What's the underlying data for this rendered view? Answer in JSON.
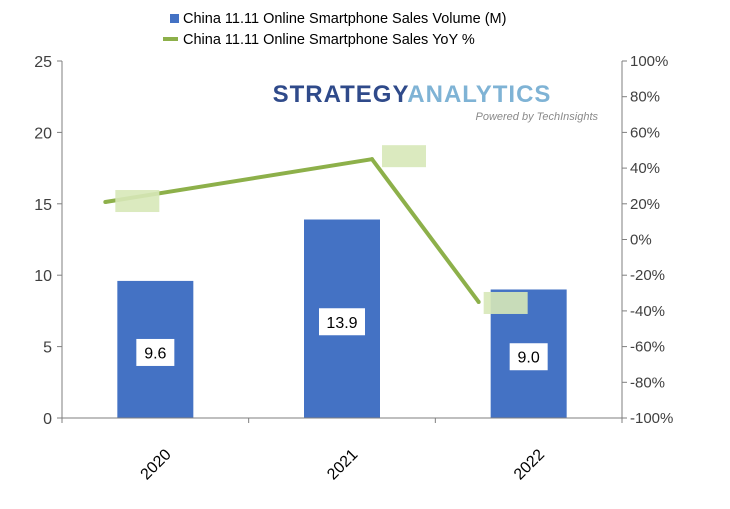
{
  "chart_data": {
    "type": "bar",
    "categories": [
      "2020",
      "2021",
      "2022"
    ],
    "series": [
      {
        "name": "China 11.11 Online Smartphone Sales Volume (M)",
        "kind": "bar",
        "axis": "left",
        "values": [
          9.6,
          13.9,
          9.0
        ],
        "data_labels": [
          "9.6",
          "13.9",
          "9.0"
        ],
        "color": "#4472C4"
      },
      {
        "name": "China 11.11 Online Smartphone Sales YoY %",
        "kind": "line",
        "axis": "right",
        "values": [
          21,
          45,
          -35
        ],
        "color": "#8DB04A",
        "label_color": "#D7E8B8"
      }
    ],
    "y_left": {
      "min": 0,
      "max": 25,
      "ticks": [
        0,
        5,
        10,
        15,
        20,
        25
      ],
      "tick_labels": [
        "0",
        "5",
        "10",
        "15",
        "20",
        "25"
      ]
    },
    "y_right": {
      "min": -100,
      "max": 100,
      "ticks": [
        -100,
        -80,
        -60,
        -40,
        -20,
        0,
        20,
        40,
        60,
        80,
        100
      ],
      "tick_labels": [
        "-100%",
        "-80%",
        "-60%",
        "-40%",
        "-20%",
        "0%",
        "20%",
        "40%",
        "60%",
        "80%",
        "100%"
      ]
    },
    "grid": false,
    "legend_position": "top-center",
    "watermark": {
      "main": "STRATEGY ANALYTICS",
      "sub": "Powered by TechInsights",
      "colors": {
        "strategy": "#2F4A8A",
        "analytics": "#7FB3D5"
      }
    }
  }
}
